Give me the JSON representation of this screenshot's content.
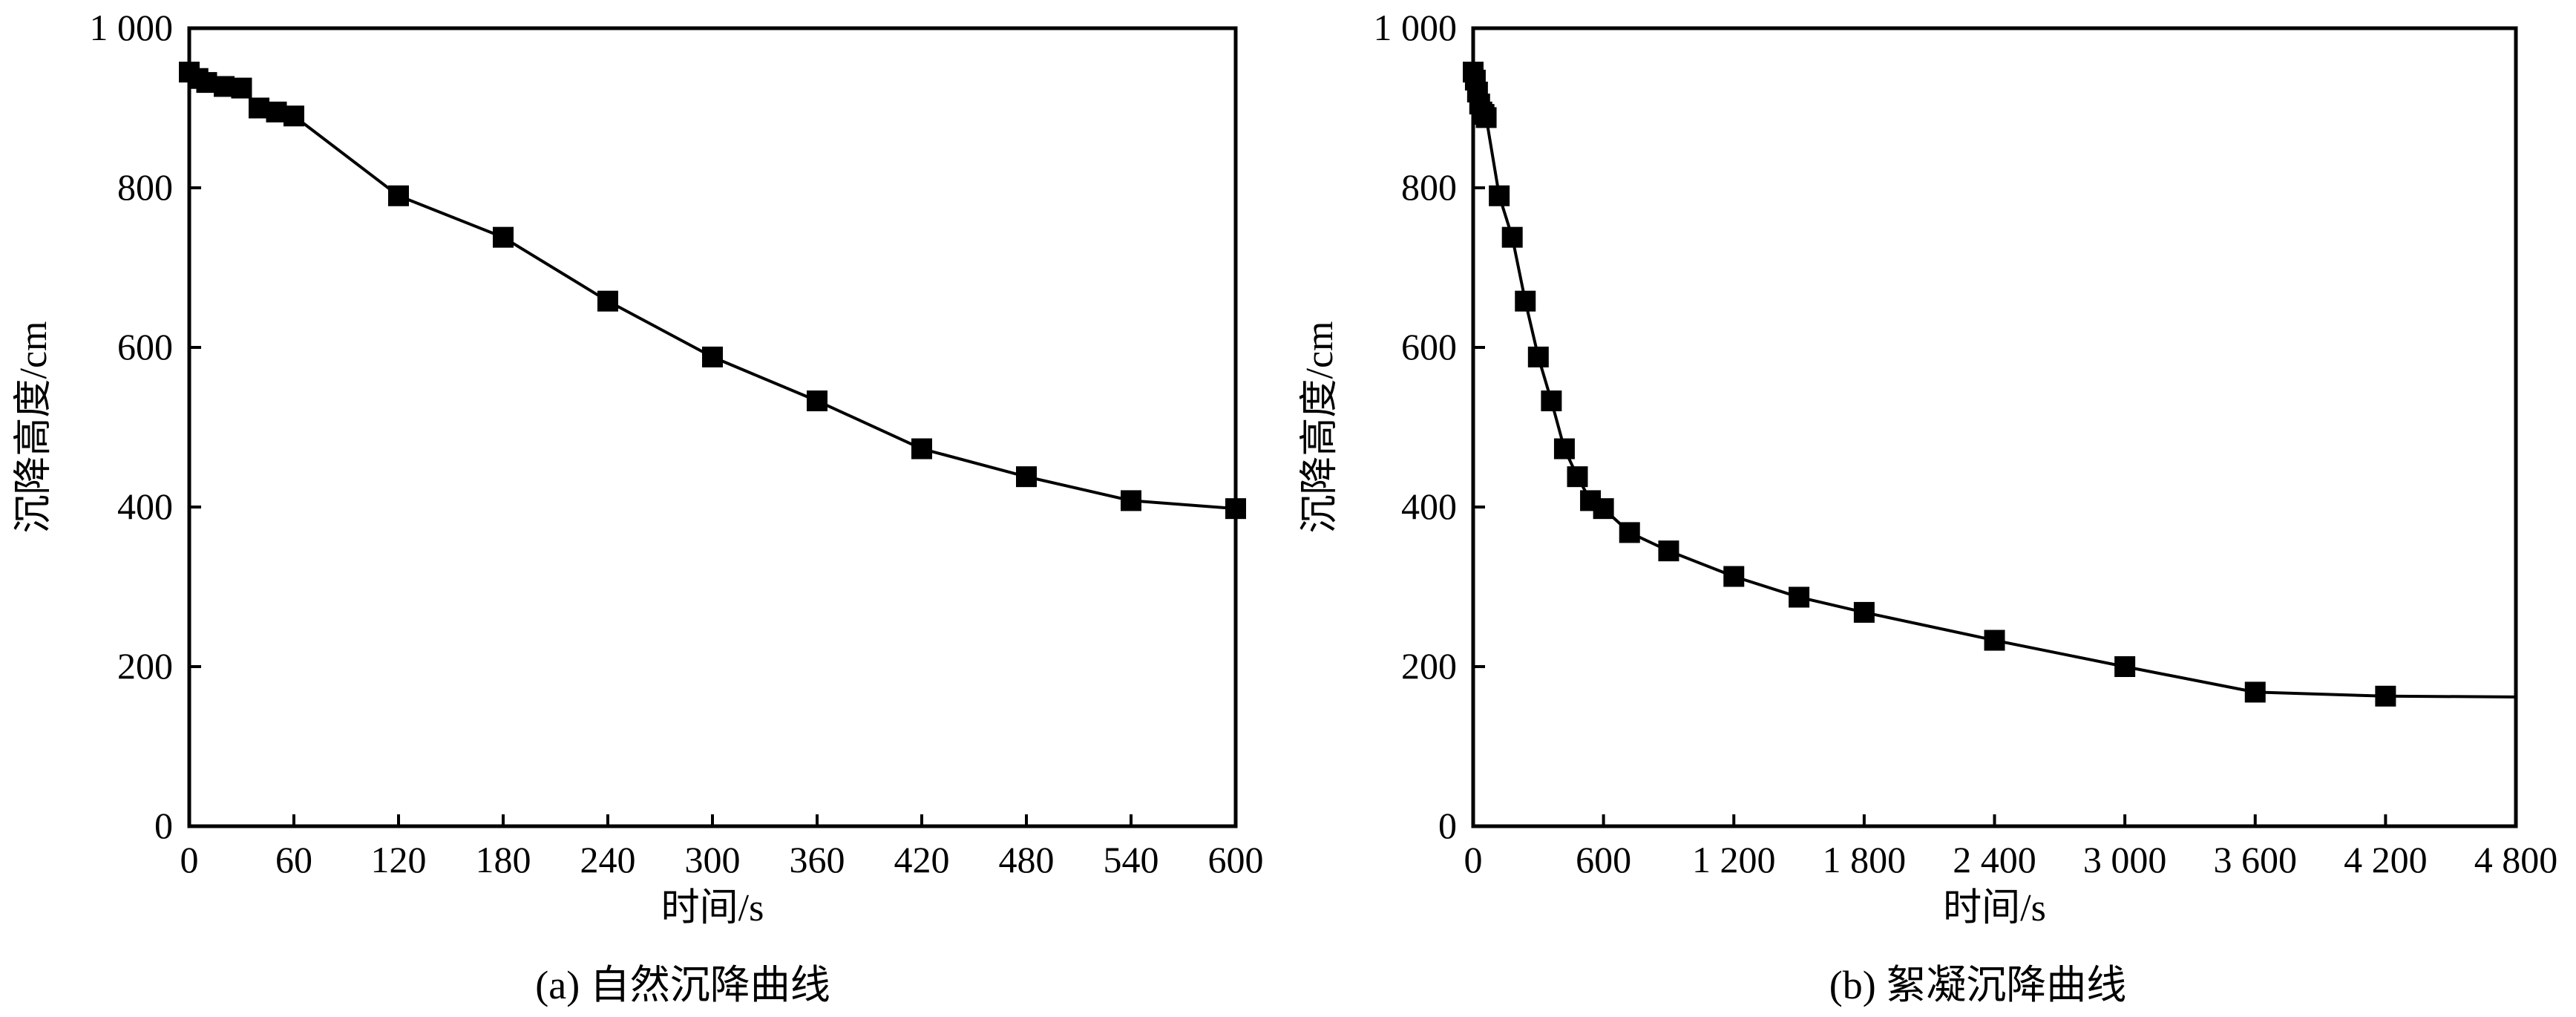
{
  "colors": {
    "line": "#000000",
    "marker": "#000000",
    "background": "#ffffff"
  },
  "chart_data": [
    {
      "type": "line",
      "panel": "a",
      "caption": "(a) 自然沉降曲线",
      "xlabel": "时间/s",
      "ylabel": "沉降高度/cm",
      "xlim": [
        0,
        600
      ],
      "ylim": [
        0,
        1000
      ],
      "xticks": [
        0,
        60,
        120,
        180,
        240,
        300,
        360,
        420,
        480,
        540,
        600
      ],
      "xtick_labels": [
        "0",
        "60",
        "120",
        "180",
        "240",
        "300",
        "360",
        "420",
        "480",
        "540",
        "600"
      ],
      "yticks": [
        0,
        200,
        400,
        600,
        800,
        1000
      ],
      "ytick_labels": [
        "0",
        "200",
        "400",
        "600",
        "800",
        "1 000"
      ],
      "grid": false,
      "series": [
        {
          "marker": "square",
          "x": [
            0,
            5,
            10,
            20,
            30,
            40,
            50,
            60,
            120,
            180,
            240,
            300,
            360,
            420,
            480,
            540,
            600
          ],
          "y": [
            945,
            937,
            932,
            927,
            925,
            900,
            895,
            890,
            790,
            738,
            658,
            588,
            533,
            473,
            438,
            408,
            398
          ]
        }
      ]
    },
    {
      "type": "line",
      "panel": "b",
      "caption": "(b) 絮凝沉降曲线",
      "xlabel": "时间/s",
      "ylabel": "沉降高度/cm",
      "xlim": [
        0,
        4800
      ],
      "ylim": [
        0,
        1000
      ],
      "xticks": [
        0,
        600,
        1200,
        1800,
        2400,
        3000,
        3600,
        4200,
        4800
      ],
      "xtick_labels": [
        "0",
        "600",
        "1 200",
        "1 800",
        "2 400",
        "3 000",
        "3 600",
        "4 200",
        "4 800"
      ],
      "yticks": [
        0,
        200,
        400,
        600,
        800,
        1000
      ],
      "ytick_labels": [
        "0",
        "200",
        "400",
        "600",
        "800",
        "1 000"
      ],
      "grid": false,
      "series": [
        {
          "marker": "square",
          "x": [
            0,
            10,
            20,
            30,
            40,
            50,
            60,
            120,
            180,
            240,
            300,
            360,
            420,
            480,
            540,
            600,
            720,
            900,
            1200,
            1500,
            1800,
            2400,
            3000,
            3600,
            4200
          ],
          "y": [
            945,
            935,
            920,
            905,
            895,
            892,
            888,
            790,
            738,
            658,
            588,
            533,
            473,
            438,
            408,
            398,
            368,
            345,
            313,
            287,
            268,
            233,
            200,
            168,
            163
          ]
        }
      ],
      "line_end": {
        "x": 4800,
        "y": 162
      }
    }
  ]
}
